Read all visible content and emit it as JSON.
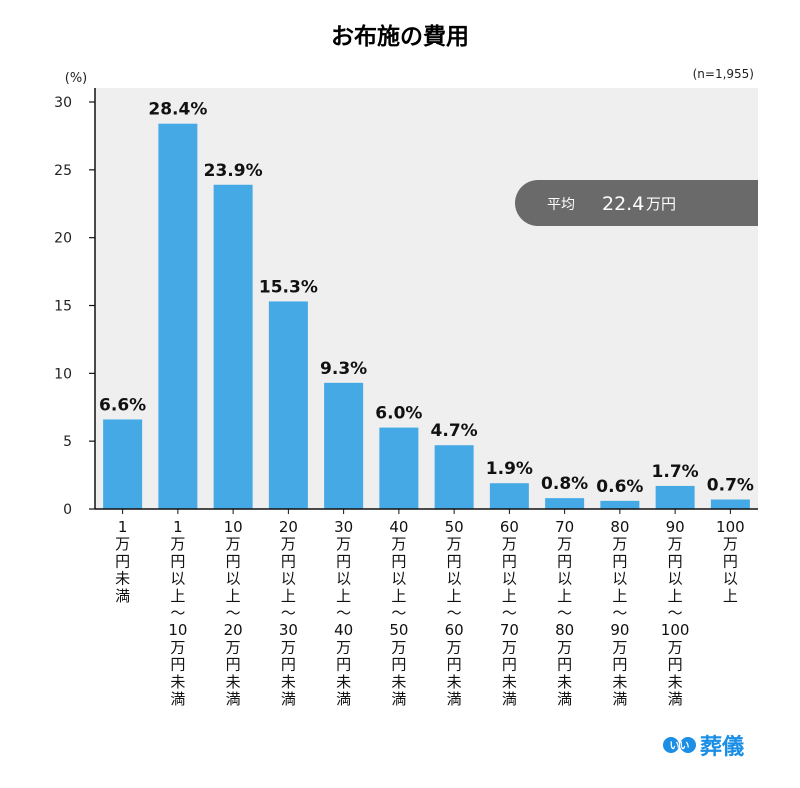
{
  "chart_data": {
    "type": "bar",
    "title": "お布施の費用",
    "y_unit": "(%)",
    "sample_size": "(n=1,955)",
    "ylim": [
      0,
      30
    ],
    "yticks": [
      0,
      5,
      10,
      15,
      20,
      25,
      30
    ],
    "grid": false,
    "categories": [
      [
        "1",
        "万",
        "円",
        "未",
        "満"
      ],
      [
        "1",
        "万",
        "円",
        "以",
        "上",
        "～",
        "10",
        "万",
        "円",
        "未",
        "満"
      ],
      [
        "10",
        "万",
        "円",
        "以",
        "上",
        "～",
        "20",
        "万",
        "円",
        "未",
        "満"
      ],
      [
        "20",
        "万",
        "円",
        "以",
        "上",
        "～",
        "30",
        "万",
        "円",
        "未",
        "満"
      ],
      [
        "30",
        "万",
        "円",
        "以",
        "上",
        "～",
        "40",
        "万",
        "円",
        "未",
        "満"
      ],
      [
        "40",
        "万",
        "円",
        "以",
        "上",
        "～",
        "50",
        "万",
        "円",
        "未",
        "満"
      ],
      [
        "50",
        "万",
        "円",
        "以",
        "上",
        "～",
        "60",
        "万",
        "円",
        "未",
        "満"
      ],
      [
        "60",
        "万",
        "円",
        "以",
        "上",
        "～",
        "70",
        "万",
        "円",
        "未",
        "満"
      ],
      [
        "70",
        "万",
        "円",
        "以",
        "上",
        "～",
        "80",
        "万",
        "円",
        "未",
        "満"
      ],
      [
        "80",
        "万",
        "円",
        "以",
        "上",
        "～",
        "90",
        "万",
        "円",
        "未",
        "満"
      ],
      [
        "90",
        "万",
        "円",
        "以",
        "上",
        "～",
        "100",
        "万",
        "円",
        "未",
        "満"
      ],
      [
        "100",
        "万",
        "円",
        "以",
        "上"
      ]
    ],
    "values": [
      6.6,
      28.4,
      23.9,
      15.3,
      9.3,
      6.0,
      4.7,
      1.9,
      0.8,
      0.6,
      1.7,
      0.7
    ],
    "data_labels": [
      "6.6%",
      "28.4%",
      "23.9%",
      "15.3%",
      "9.3%",
      "6.0%",
      "4.7%",
      "1.9%",
      "0.8%",
      "0.6%",
      "1.7%",
      "0.7%"
    ],
    "bar_color": "#45a9e6",
    "annotation": {
      "label": "平均",
      "value": "22.4",
      "unit": "万円",
      "color": "#6a6a6a"
    }
  },
  "logo": {
    "badge": "いい",
    "text": "葬儀",
    "color": "#1b8ee6"
  }
}
